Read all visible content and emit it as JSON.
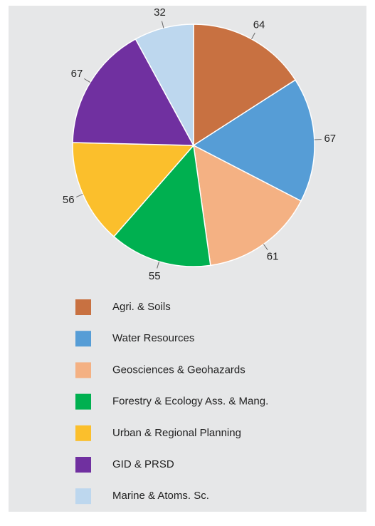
{
  "chart_data": {
    "type": "pie",
    "categories": [
      "Agri. & Soils",
      "Water Resources",
      "Geosciences & Geohazards",
      "Forestry & Ecology Ass. & Mang.",
      "Urban & Regional Planning",
      "GID & PRSD",
      "Marine & Atoms. Sc."
    ],
    "values": [
      64,
      67,
      61,
      55,
      56,
      67,
      32
    ],
    "colors": [
      "#c87141",
      "#569dd6",
      "#f4b183",
      "#00b050",
      "#fbbf2c",
      "#7030a0",
      "#bdd7ee"
    ],
    "legend": "bottom"
  }
}
